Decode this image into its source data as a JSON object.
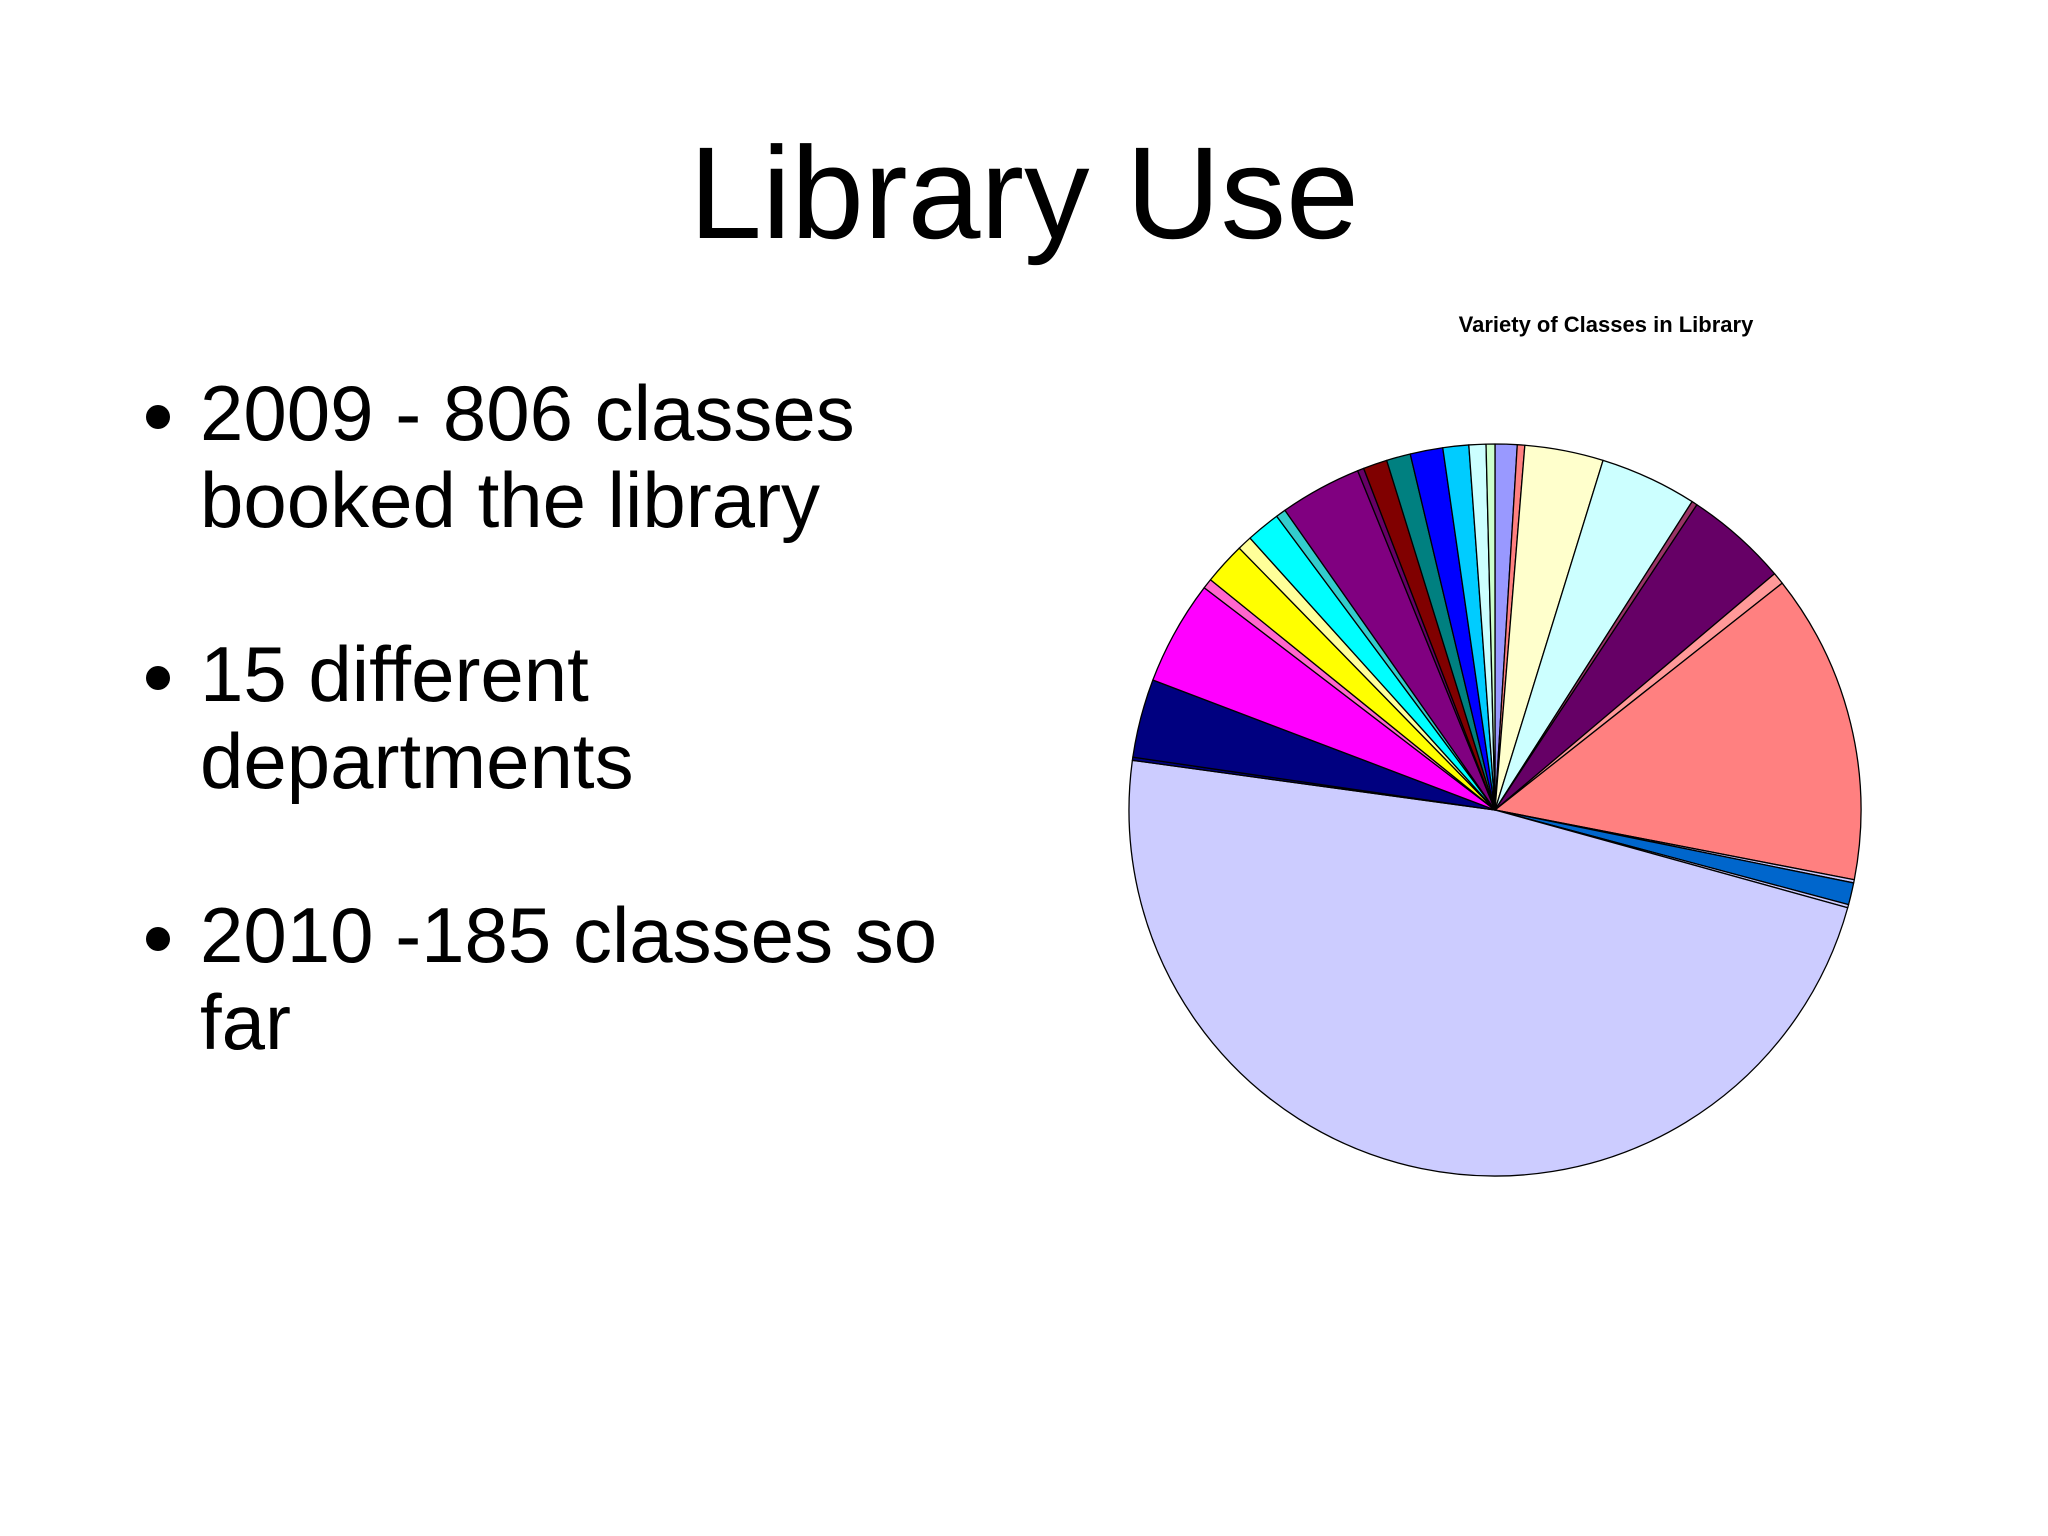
{
  "title": "Library Use",
  "bullets": [
    "2009 - 806 classes booked the library",
    "15 different departments",
    "2010 -185 classes so far"
  ],
  "chart_data": {
    "type": "pie",
    "title": "Variety of Classes in Library",
    "values": [
      0.97,
      0.33,
      3.47,
      4.28,
      0.25,
      4.53,
      0.53,
      13.69,
      0.14,
      0.97,
      0.14,
      47.86,
      0.14,
      3.47,
      4.61,
      0.44,
      1.86,
      0.64,
      1.5,
      0.44,
      3.61,
      0.28,
      1.06,
      1.06,
      1.44,
      1.14,
      0.75,
      0.39
    ],
    "colors": [
      "#9999ff",
      "#ff8080",
      "#ffffcc",
      "#ccffff",
      "#993366",
      "#660066",
      "#ff9999",
      "#ff8080",
      "#ccccff",
      "#0066cc",
      "#ccccff",
      "#ccccff",
      "#000080",
      "#000080",
      "#ff00ff",
      "#ff66cc",
      "#ffff00",
      "#ffff99",
      "#00ffff",
      "#33cccc",
      "#800080",
      "#660066",
      "#800000",
      "#008080",
      "#0000ff",
      "#00ccff",
      "#ccffff",
      "#ccffcc"
    ],
    "start_angle": 0,
    "direction": "clockwise"
  }
}
